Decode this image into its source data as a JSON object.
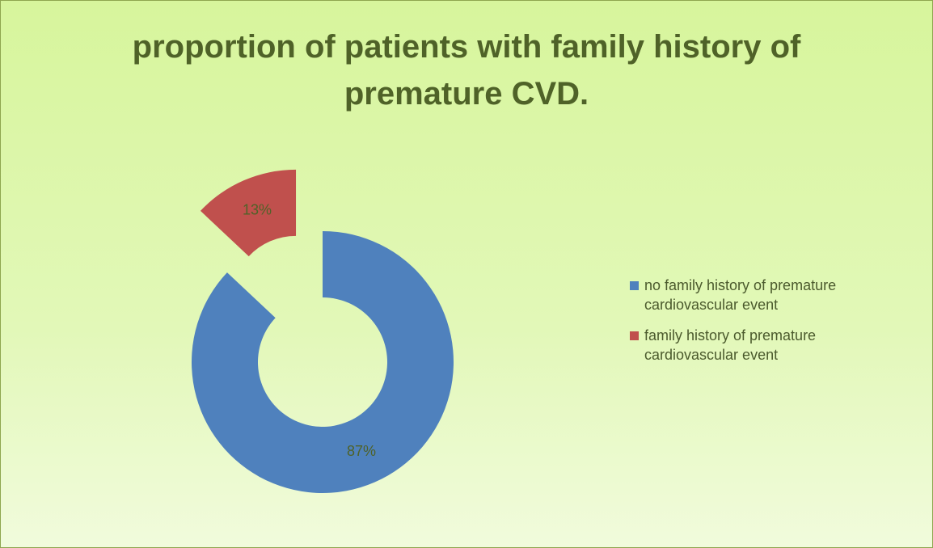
{
  "chart_data": {
    "type": "donut",
    "title": "proportion of patients with family history of premature CVD.",
    "categories": [
      "no family history of premature cardiovascular event",
      "family history of premature cardiovascular event"
    ],
    "values": [
      87,
      13
    ],
    "value_labels": [
      "87%",
      "13%"
    ],
    "colors": [
      "#4f81bd",
      "#c0504d"
    ],
    "exploded": [
      false,
      true
    ],
    "legend": "right"
  }
}
